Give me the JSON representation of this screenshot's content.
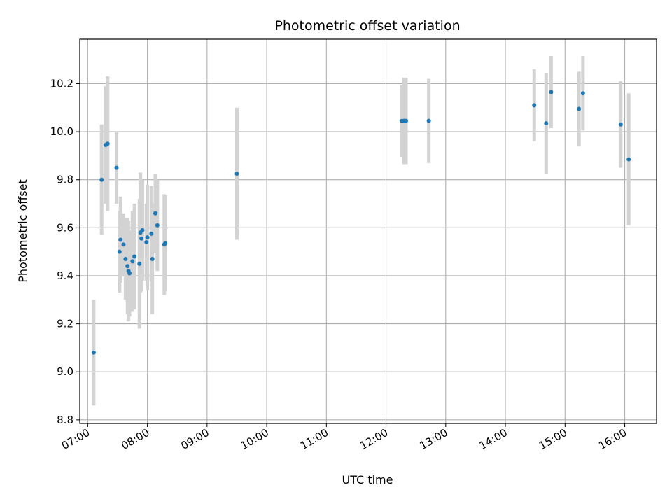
{
  "chart_data": {
    "type": "scatter",
    "title": "Photometric offset variation",
    "xlabel": "UTC time",
    "ylabel": "Photometric offset",
    "x_unit": "hours UTC",
    "xlim": [
      "06:52",
      "16:32"
    ],
    "ylim": [
      8.785,
      10.385
    ],
    "grid": true,
    "colors": {
      "point": "#1f77b4",
      "errorbar": "#d3d3d3",
      "grid": "#b0b0b0",
      "axes": "#000000"
    },
    "xticks": [
      {
        "value": "07:00",
        "label": "07:00"
      },
      {
        "value": "08:00",
        "label": "08:00"
      },
      {
        "value": "09:00",
        "label": "09:00"
      },
      {
        "value": "10:00",
        "label": "10:00"
      },
      {
        "value": "11:00",
        "label": "11:00"
      },
      {
        "value": "12:00",
        "label": "12:00"
      },
      {
        "value": "13:00",
        "label": "13:00"
      },
      {
        "value": "14:00",
        "label": "14:00"
      },
      {
        "value": "15:00",
        "label": "15:00"
      },
      {
        "value": "16:00",
        "label": "16:00"
      }
    ],
    "yticks": [
      {
        "value": 8.8,
        "label": "8.8"
      },
      {
        "value": 9.0,
        "label": "9.0"
      },
      {
        "value": 9.2,
        "label": "9.2"
      },
      {
        "value": 9.4,
        "label": "9.4"
      },
      {
        "value": 9.6,
        "label": "9.6"
      },
      {
        "value": 9.8,
        "label": "9.8"
      },
      {
        "value": 10.0,
        "label": "10.0"
      },
      {
        "value": 10.2,
        "label": "10.2"
      }
    ],
    "points": [
      {
        "x": "07:06",
        "y": 9.08,
        "yerr": 0.22
      },
      {
        "x": "07:14",
        "y": 9.8,
        "yerr": 0.23
      },
      {
        "x": "07:18",
        "y": 9.945,
        "yerr": 0.245
      },
      {
        "x": "07:20",
        "y": 9.95,
        "yerr": 0.28
      },
      {
        "x": "07:29",
        "y": 9.85,
        "yerr": 0.15
      },
      {
        "x": "07:32",
        "y": 9.5,
        "yerr": 0.17
      },
      {
        "x": "07:33",
        "y": 9.55,
        "yerr": 0.18
      },
      {
        "x": "07:36",
        "y": 9.53,
        "yerr": 0.13
      },
      {
        "x": "07:38",
        "y": 9.47,
        "yerr": 0.17
      },
      {
        "x": "07:40",
        "y": 9.44,
        "yerr": 0.2
      },
      {
        "x": "07:41",
        "y": 9.42,
        "yerr": 0.21
      },
      {
        "x": "07:42",
        "y": 9.41,
        "yerr": 0.18
      },
      {
        "x": "07:45",
        "y": 9.46,
        "yerr": 0.21
      },
      {
        "x": "07:47",
        "y": 9.48,
        "yerr": 0.22
      },
      {
        "x": "07:52",
        "y": 9.45,
        "yerr": 0.27
      },
      {
        "x": "07:53",
        "y": 9.58,
        "yerr": 0.25
      },
      {
        "x": "07:54",
        "y": 9.555,
        "yerr": 0.22
      },
      {
        "x": "07:55",
        "y": 9.59,
        "yerr": 0.21
      },
      {
        "x": "07:59",
        "y": 9.54,
        "yerr": 0.16
      },
      {
        "x": "08:00",
        "y": 9.56,
        "yerr": 0.22
      },
      {
        "x": "08:04",
        "y": 9.575,
        "yerr": 0.2
      },
      {
        "x": "08:05",
        "y": 9.47,
        "yerr": 0.23
      },
      {
        "x": "08:08",
        "y": 9.66,
        "yerr": 0.165
      },
      {
        "x": "08:10",
        "y": 9.61,
        "yerr": 0.19
      },
      {
        "x": "08:17",
        "y": 9.53,
        "yerr": 0.21
      },
      {
        "x": "08:18",
        "y": 9.535,
        "yerr": 0.2
      },
      {
        "x": "09:30",
        "y": 9.825,
        "yerr": 0.275
      },
      {
        "x": "12:16",
        "y": 10.045,
        "yerr": 0.15
      },
      {
        "x": "12:18",
        "y": 10.045,
        "yerr": 0.18
      },
      {
        "x": "12:20",
        "y": 10.045,
        "yerr": 0.18
      },
      {
        "x": "12:43",
        "y": 10.045,
        "yerr": 0.175
      },
      {
        "x": "14:29",
        "y": 10.11,
        "yerr": 0.15
      },
      {
        "x": "14:41",
        "y": 10.035,
        "yerr": 0.21
      },
      {
        "x": "14:46",
        "y": 10.165,
        "yerr": 0.15
      },
      {
        "x": "15:14",
        "y": 10.095,
        "yerr": 0.155
      },
      {
        "x": "15:18",
        "y": 10.16,
        "yerr": 0.155
      },
      {
        "x": "15:56",
        "y": 10.03,
        "yerr": 0.18
      },
      {
        "x": "16:04",
        "y": 9.885,
        "yerr": 0.275
      }
    ]
  }
}
